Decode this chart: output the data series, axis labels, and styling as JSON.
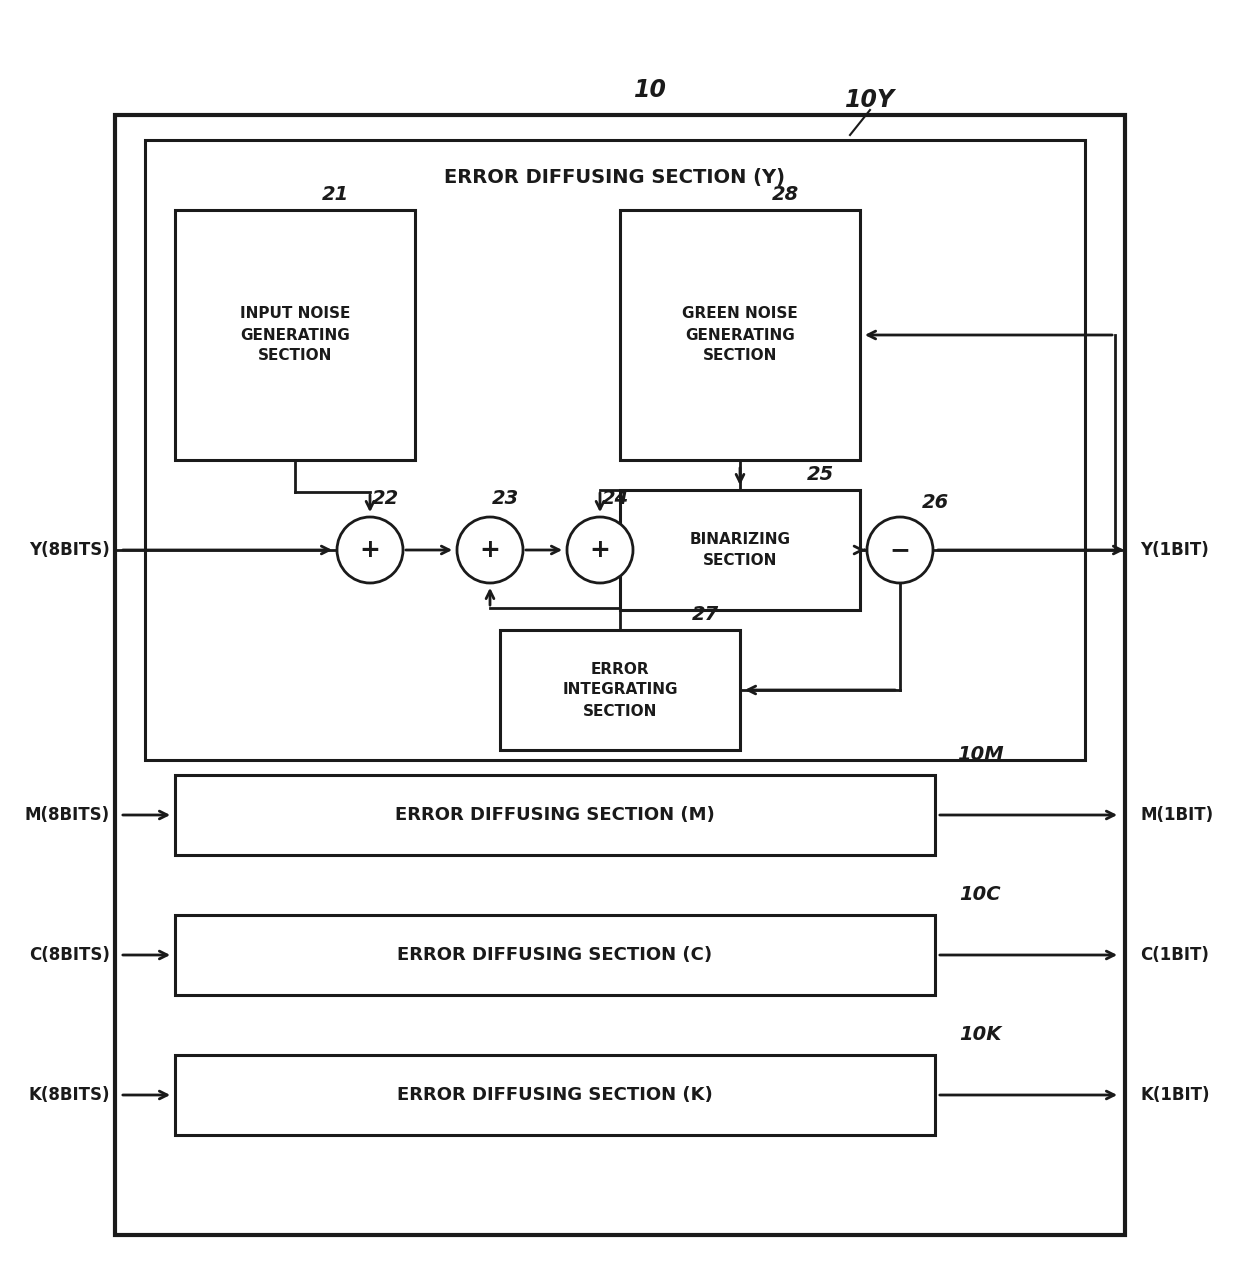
{
  "bg_color": "#ffffff",
  "line_color": "#1a1a1a",
  "text_color": "#1a1a1a",
  "label_10": "10",
  "label_10Y": "10Y",
  "label_10M": "10M",
  "label_10C": "10C",
  "label_10K": "10K",
  "label_21": "21",
  "label_22": "22",
  "label_23": "23",
  "label_24": "24",
  "label_25": "25",
  "label_26": "26",
  "label_27": "27",
  "label_28": "28",
  "title_Y": "ERROR DIFFUSING SECTION (Y)",
  "title_M": "ERROR DIFFUSING SECTION (M)",
  "title_C": "ERROR DIFFUSING SECTION (C)",
  "title_K": "ERROR DIFFUSING SECTION (K)",
  "box_input_noise": "INPUT NOISE\nGENERATING\nSECTION",
  "box_green_noise": "GREEN NOISE\nGENERATING\nSECTION",
  "box_binarizing": "BINARIZING\nSECTION",
  "box_error_int": "ERROR\nINTEGRATING\nSECTION",
  "label_Y8": "Y(8BITS)",
  "label_Y1": "Y(1BIT)",
  "label_M8": "M(8BITS)",
  "label_M1": "M(1BIT)",
  "label_C8": "C(8BITS)",
  "label_C1": "C(1BIT)",
  "label_K8": "K(8BITS)",
  "label_K1": "K(1BIT)"
}
